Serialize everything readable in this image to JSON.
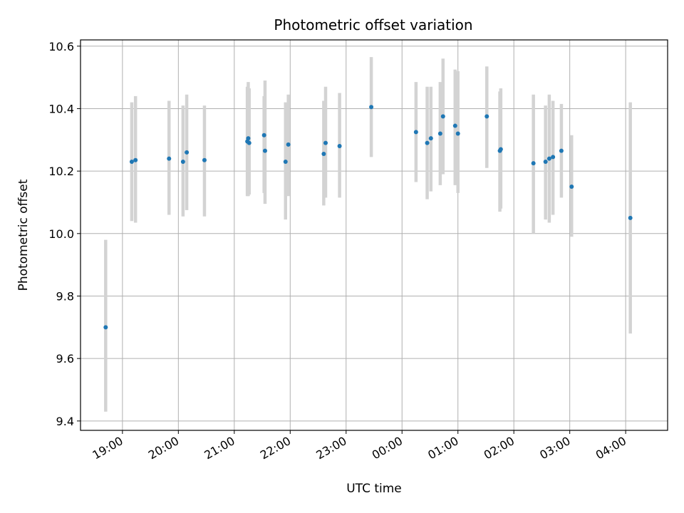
{
  "chart_data": {
    "type": "scatter",
    "title": "Photometric offset variation",
    "xlabel": "UTC time",
    "ylabel": "Photometric offset",
    "x_unit": "time of night (UTC), starting 18:00",
    "xlim": [
      "18:15",
      "04:45"
    ],
    "ylim": [
      9.37,
      10.62
    ],
    "x_ticks": [
      "19:00",
      "20:00",
      "21:00",
      "22:00",
      "23:00",
      "00:00",
      "01:00",
      "02:00",
      "03:00",
      "04:00"
    ],
    "y_ticks": [
      "9.4",
      "9.6",
      "9.8",
      "10.0",
      "10.2",
      "10.4",
      "10.6"
    ],
    "grid": true,
    "colors": {
      "point": "#1f77b4",
      "errorbar": "#d3d3d3",
      "grid": "#b0b0b0"
    },
    "series": [
      {
        "points": [
          {
            "x": "18:42",
            "y": 9.7,
            "lo": 9.43,
            "hi": 9.98
          },
          {
            "x": "19:10",
            "y": 10.23,
            "lo": 10.04,
            "hi": 10.42
          },
          {
            "x": "19:14",
            "y": 10.235,
            "lo": 10.035,
            "hi": 10.44
          },
          {
            "x": "19:50",
            "y": 10.24,
            "lo": 10.06,
            "hi": 10.425
          },
          {
            "x": "20:05",
            "y": 10.23,
            "lo": 10.055,
            "hi": 10.41
          },
          {
            "x": "20:09",
            "y": 10.26,
            "lo": 10.075,
            "hi": 10.445
          },
          {
            "x": "20:28",
            "y": 10.235,
            "lo": 10.055,
            "hi": 10.41
          },
          {
            "x": "21:14",
            "y": 10.295,
            "lo": 10.12,
            "hi": 10.47
          },
          {
            "x": "21:15",
            "y": 10.305,
            "lo": 10.12,
            "hi": 10.485
          },
          {
            "x": "21:16",
            "y": 10.29,
            "lo": 10.125,
            "hi": 10.465
          },
          {
            "x": "21:32",
            "y": 10.315,
            "lo": 10.13,
            "hi": 10.44
          },
          {
            "x": "21:33",
            "y": 10.265,
            "lo": 10.095,
            "hi": 10.49
          },
          {
            "x": "21:55",
            "y": 10.23,
            "lo": 10.045,
            "hi": 10.42
          },
          {
            "x": "21:58",
            "y": 10.285,
            "lo": 10.12,
            "hi": 10.445
          },
          {
            "x": "22:36",
            "y": 10.255,
            "lo": 10.09,
            "hi": 10.425
          },
          {
            "x": "22:38",
            "y": 10.29,
            "lo": 10.115,
            "hi": 10.47
          },
          {
            "x": "22:53",
            "y": 10.28,
            "lo": 10.115,
            "hi": 10.45
          },
          {
            "x": "23:27",
            "y": 10.405,
            "lo": 10.245,
            "hi": 10.565
          },
          {
            "x": "00:15",
            "y": 10.325,
            "lo": 10.165,
            "hi": 10.485
          },
          {
            "x": "00:27",
            "y": 10.29,
            "lo": 10.11,
            "hi": 10.47
          },
          {
            "x": "00:31",
            "y": 10.305,
            "lo": 10.135,
            "hi": 10.47
          },
          {
            "x": "00:41",
            "y": 10.32,
            "lo": 10.155,
            "hi": 10.485
          },
          {
            "x": "00:44",
            "y": 10.375,
            "lo": 10.19,
            "hi": 10.56
          },
          {
            "x": "00:57",
            "y": 10.345,
            "lo": 10.155,
            "hi": 10.525
          },
          {
            "x": "01:00",
            "y": 10.32,
            "lo": 10.13,
            "hi": 10.52
          },
          {
            "x": "01:31",
            "y": 10.375,
            "lo": 10.21,
            "hi": 10.535
          },
          {
            "x": "01:45",
            "y": 10.265,
            "lo": 10.07,
            "hi": 10.455
          },
          {
            "x": "01:46",
            "y": 10.27,
            "lo": 10.08,
            "hi": 10.465
          },
          {
            "x": "02:21",
            "y": 10.225,
            "lo": 10.0,
            "hi": 10.445
          },
          {
            "x": "02:34",
            "y": 10.23,
            "lo": 10.045,
            "hi": 10.41
          },
          {
            "x": "02:38",
            "y": 10.24,
            "lo": 10.035,
            "hi": 10.445
          },
          {
            "x": "02:42",
            "y": 10.245,
            "lo": 10.06,
            "hi": 10.425
          },
          {
            "x": "02:51",
            "y": 10.265,
            "lo": 10.115,
            "hi": 10.415
          },
          {
            "x": "03:02",
            "y": 10.15,
            "lo": 9.99,
            "hi": 10.315
          },
          {
            "x": "04:05",
            "y": 10.05,
            "lo": 9.68,
            "hi": 10.42
          }
        ]
      }
    ]
  }
}
